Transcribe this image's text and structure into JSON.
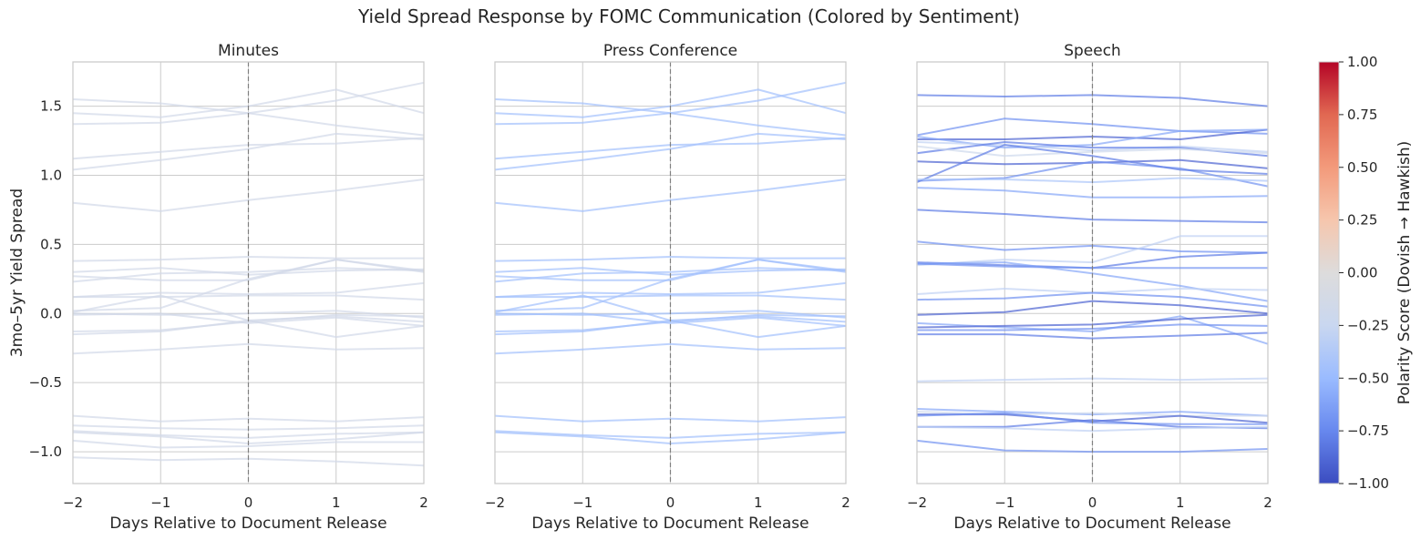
{
  "chart_data": {
    "type": "line",
    "title": "Yield Spread Response by FOMC Communication (Colored by Sentiment)",
    "ylabel": "3mo–5yr Yield Spread",
    "xlabel": "Days Relative to Document Release",
    "x": [
      -2,
      -1,
      0,
      1,
      2
    ],
    "xticks": [
      "−2",
      "−1",
      "0",
      "1",
      "2"
    ],
    "ylim": [
      -1.23,
      1.82
    ],
    "yticks": [
      {
        "v": 1.5,
        "label": "1.5"
      },
      {
        "v": 1.0,
        "label": "1.0"
      },
      {
        "v": 0.5,
        "label": "0.5"
      },
      {
        "v": 0.0,
        "label": "0.0"
      },
      {
        "v": -0.5,
        "label": "−0.5"
      },
      {
        "v": -1.0,
        "label": "−1.0"
      }
    ],
    "grid": true,
    "vline_x": 0,
    "colorbar": {
      "label": "Polarity Score (Dovish → Hawkish)",
      "range": [
        -1,
        1
      ],
      "colormap": "coolwarm",
      "ticks": [
        "1.00",
        "0.75",
        "0.50",
        "0.25",
        "0.00",
        "−0.25",
        "−0.50",
        "−0.75",
        "−1.00"
      ],
      "stops": [
        "#3b4cc0",
        "#6788ee",
        "#9abbff",
        "#c9d7f0",
        "#dddcdc",
        "#f6c6ad",
        "#f39a7b",
        "#e16852",
        "#b40426"
      ]
    },
    "panels": [
      {
        "title": "Minutes",
        "series": [
          {
            "polarity": -0.15,
            "values": [
              1.55,
              1.52,
              1.45,
              1.36,
              1.29
            ]
          },
          {
            "polarity": -0.15,
            "values": [
              1.45,
              1.42,
              1.5,
              1.62,
              1.45
            ]
          },
          {
            "polarity": -0.15,
            "values": [
              1.37,
              1.38,
              1.45,
              1.54,
              1.67
            ]
          },
          {
            "polarity": -0.15,
            "values": [
              1.12,
              1.17,
              1.22,
              1.23,
              1.27
            ]
          },
          {
            "polarity": -0.15,
            "values": [
              1.04,
              1.11,
              1.19,
              1.3,
              1.26
            ]
          },
          {
            "polarity": -0.15,
            "values": [
              0.8,
              0.74,
              0.82,
              0.89,
              0.97
            ]
          },
          {
            "polarity": -0.15,
            "values": [
              0.38,
              0.39,
              0.41,
              0.4,
              0.4
            ]
          },
          {
            "polarity": -0.15,
            "values": [
              0.3,
              0.33,
              0.28,
              0.31,
              0.32
            ]
          },
          {
            "polarity": -0.15,
            "values": [
              0.27,
              0.24,
              0.24,
              0.39,
              0.3
            ]
          },
          {
            "polarity": -0.15,
            "values": [
              0.23,
              0.29,
              0.3,
              0.33,
              0.31
            ]
          },
          {
            "polarity": -0.15,
            "values": [
              0.12,
              0.12,
              0.13,
              0.13,
              0.1
            ]
          },
          {
            "polarity": -0.15,
            "values": [
              0.12,
              0.15,
              0.14,
              0.15,
              0.22
            ]
          },
          {
            "polarity": -0.15,
            "values": [
              0.02,
              0.04,
              0.25,
              0.39,
              0.31
            ]
          },
          {
            "polarity": -0.15,
            "values": [
              0.0,
              -0.01,
              0.0,
              0.02,
              -0.03
            ]
          },
          {
            "polarity": -0.15,
            "values": [
              0.01,
              0.13,
              -0.05,
              -0.02,
              -0.06
            ]
          },
          {
            "polarity": -0.15,
            "values": [
              -0.13,
              -0.12,
              -0.06,
              -0.01,
              -0.02
            ]
          },
          {
            "polarity": -0.15,
            "values": [
              -0.15,
              -0.13,
              -0.05,
              -0.17,
              -0.09
            ]
          },
          {
            "polarity": -0.15,
            "values": [
              -0.01,
              0.0,
              -0.07,
              -0.03,
              -0.09
            ]
          },
          {
            "polarity": -0.15,
            "values": [
              -0.29,
              -0.26,
              -0.22,
              -0.26,
              -0.25
            ]
          },
          {
            "polarity": -0.15,
            "values": [
              -0.74,
              -0.78,
              -0.76,
              -0.78,
              -0.75
            ]
          },
          {
            "polarity": -0.15,
            "values": [
              -0.81,
              -0.83,
              -0.84,
              -0.83,
              -0.81
            ]
          },
          {
            "polarity": -0.15,
            "values": [
              -0.85,
              -0.88,
              -0.9,
              -0.87,
              -0.86
            ]
          },
          {
            "polarity": -0.15,
            "values": [
              -0.86,
              -0.89,
              -0.94,
              -0.91,
              -0.86
            ]
          },
          {
            "polarity": -0.15,
            "values": [
              -0.92,
              -0.97,
              -0.96,
              -0.93,
              -0.93
            ]
          },
          {
            "polarity": -0.15,
            "values": [
              -1.04,
              -1.06,
              -1.05,
              -1.07,
              -1.1
            ]
          }
        ]
      },
      {
        "title": "Press Conference",
        "series": [
          {
            "polarity": -0.45,
            "values": [
              1.55,
              1.52,
              1.45,
              1.36,
              1.29
            ]
          },
          {
            "polarity": -0.45,
            "values": [
              1.45,
              1.42,
              1.5,
              1.62,
              1.45
            ]
          },
          {
            "polarity": -0.45,
            "values": [
              1.37,
              1.38,
              1.45,
              1.54,
              1.67
            ]
          },
          {
            "polarity": -0.45,
            "values": [
              1.12,
              1.17,
              1.22,
              1.23,
              1.27
            ]
          },
          {
            "polarity": -0.45,
            "values": [
              1.04,
              1.11,
              1.19,
              1.3,
              1.26
            ]
          },
          {
            "polarity": -0.45,
            "values": [
              0.8,
              0.74,
              0.82,
              0.89,
              0.97
            ]
          },
          {
            "polarity": -0.45,
            "values": [
              0.38,
              0.39,
              0.41,
              0.4,
              0.4
            ]
          },
          {
            "polarity": -0.45,
            "values": [
              0.3,
              0.33,
              0.28,
              0.31,
              0.32
            ]
          },
          {
            "polarity": -0.45,
            "values": [
              0.27,
              0.24,
              0.24,
              0.39,
              0.3
            ]
          },
          {
            "polarity": -0.45,
            "values": [
              0.23,
              0.29,
              0.3,
              0.33,
              0.31
            ]
          },
          {
            "polarity": -0.45,
            "values": [
              0.12,
              0.12,
              0.13,
              0.13,
              0.1
            ]
          },
          {
            "polarity": -0.45,
            "values": [
              0.12,
              0.15,
              0.14,
              0.15,
              0.22
            ]
          },
          {
            "polarity": -0.45,
            "values": [
              0.02,
              0.04,
              0.25,
              0.39,
              0.31
            ]
          },
          {
            "polarity": -0.45,
            "values": [
              0.0,
              -0.01,
              0.0,
              0.02,
              -0.03
            ]
          },
          {
            "polarity": -0.45,
            "values": [
              0.01,
              0.13,
              -0.05,
              -0.02,
              -0.06
            ]
          },
          {
            "polarity": -0.45,
            "values": [
              -0.13,
              -0.12,
              -0.06,
              -0.01,
              -0.02
            ]
          },
          {
            "polarity": -0.45,
            "values": [
              -0.15,
              -0.13,
              -0.05,
              -0.17,
              -0.09
            ]
          },
          {
            "polarity": -0.45,
            "values": [
              -0.01,
              0.0,
              -0.07,
              -0.03,
              -0.09
            ]
          },
          {
            "polarity": -0.45,
            "values": [
              -0.29,
              -0.26,
              -0.22,
              -0.26,
              -0.25
            ]
          },
          {
            "polarity": -0.45,
            "values": [
              -0.74,
              -0.78,
              -0.76,
              -0.78,
              -0.75
            ]
          },
          {
            "polarity": -0.45,
            "values": [
              -0.85,
              -0.88,
              -0.9,
              -0.87,
              -0.86
            ]
          },
          {
            "polarity": -0.45,
            "values": [
              -0.86,
              -0.89,
              -0.94,
              -0.91,
              -0.86
            ]
          }
        ]
      },
      {
        "title": "Speech",
        "series": [
          {
            "polarity": -0.8,
            "values": [
              1.58,
              1.57,
              1.58,
              1.56,
              1.5
            ]
          },
          {
            "polarity": -0.7,
            "values": [
              1.29,
              1.41,
              1.37,
              1.32,
              1.3
            ]
          },
          {
            "polarity": -0.9,
            "values": [
              1.26,
              1.26,
              1.28,
              1.26,
              1.33
            ]
          },
          {
            "polarity": -0.6,
            "values": [
              1.28,
              1.2,
              1.22,
              1.32,
              1.33
            ]
          },
          {
            "polarity": -0.3,
            "values": [
              1.24,
              1.22,
              1.18,
              1.21,
              1.17
            ]
          },
          {
            "polarity": -0.8,
            "values": [
              1.16,
              1.24,
              1.2,
              1.2,
              1.14
            ]
          },
          {
            "polarity": -0.2,
            "values": [
              1.21,
              1.14,
              1.17,
              1.19,
              1.16
            ]
          },
          {
            "polarity": -0.9,
            "values": [
              1.1,
              1.08,
              1.09,
              1.11,
              1.05
            ]
          },
          {
            "polarity": -0.7,
            "values": [
              0.96,
              0.98,
              1.1,
              1.05,
              0.92
            ]
          },
          {
            "polarity": -0.8,
            "values": [
              0.95,
              1.22,
              1.14,
              1.04,
              1.01
            ]
          },
          {
            "polarity": -0.4,
            "values": [
              0.97,
              0.97,
              0.95,
              0.98,
              0.96
            ]
          },
          {
            "polarity": -0.6,
            "values": [
              0.91,
              0.89,
              0.84,
              0.84,
              0.85
            ]
          },
          {
            "polarity": -0.8,
            "values": [
              0.75,
              0.72,
              0.68,
              0.67,
              0.66
            ]
          },
          {
            "polarity": -0.7,
            "values": [
              0.52,
              0.46,
              0.49,
              0.45,
              0.44
            ]
          },
          {
            "polarity": -0.3,
            "values": [
              0.35,
              0.39,
              0.37,
              0.56,
              0.56
            ]
          },
          {
            "polarity": -0.8,
            "values": [
              0.37,
              0.35,
              0.33,
              0.41,
              0.44
            ]
          },
          {
            "polarity": -0.6,
            "values": [
              0.36,
              0.37,
              0.29,
              0.2,
              0.09
            ]
          },
          {
            "polarity": -0.7,
            "values": [
              0.36,
              0.34,
              0.33,
              0.33,
              0.33
            ]
          },
          {
            "polarity": -0.3,
            "values": [
              0.14,
              0.18,
              0.15,
              0.18,
              0.17
            ]
          },
          {
            "polarity": -0.7,
            "values": [
              0.1,
              0.11,
              0.15,
              0.12,
              0.05
            ]
          },
          {
            "polarity": -0.9,
            "values": [
              -0.01,
              0.01,
              0.09,
              0.06,
              0.0
            ]
          },
          {
            "polarity": -0.6,
            "values": [
              -0.07,
              -0.1,
              -0.13,
              -0.02,
              -0.22
            ]
          },
          {
            "polarity": -0.9,
            "values": [
              -0.1,
              -0.09,
              -0.08,
              -0.04,
              -0.01
            ]
          },
          {
            "polarity": -0.7,
            "values": [
              -0.12,
              -0.12,
              -0.11,
              -0.08,
              -0.09
            ]
          },
          {
            "polarity": -0.8,
            "values": [
              -0.15,
              -0.15,
              -0.18,
              -0.16,
              -0.14
            ]
          },
          {
            "polarity": -0.3,
            "values": [
              -0.49,
              -0.48,
              -0.47,
              -0.48,
              -0.47
            ]
          },
          {
            "polarity": -0.6,
            "values": [
              -0.69,
              -0.71,
              -0.73,
              -0.71,
              -0.74
            ]
          },
          {
            "polarity": -0.2,
            "values": [
              -0.71,
              -0.73,
              -0.72,
              -0.74,
              -0.74
            ]
          },
          {
            "polarity": -0.9,
            "values": [
              -0.73,
              -0.73,
              -0.78,
              -0.74,
              -0.79
            ]
          },
          {
            "polarity": -0.7,
            "values": [
              -0.74,
              -0.72,
              -0.79,
              -0.8,
              -0.8
            ]
          },
          {
            "polarity": -0.8,
            "values": [
              -0.82,
              -0.82,
              -0.77,
              -0.82,
              -0.83
            ]
          },
          {
            "polarity": -0.3,
            "values": [
              -0.82,
              -0.83,
              -0.85,
              -0.83,
              -0.82
            ]
          },
          {
            "polarity": -0.7,
            "values": [
              -0.92,
              -0.99,
              -1.0,
              -1.0,
              -0.98
            ]
          }
        ]
      }
    ]
  }
}
